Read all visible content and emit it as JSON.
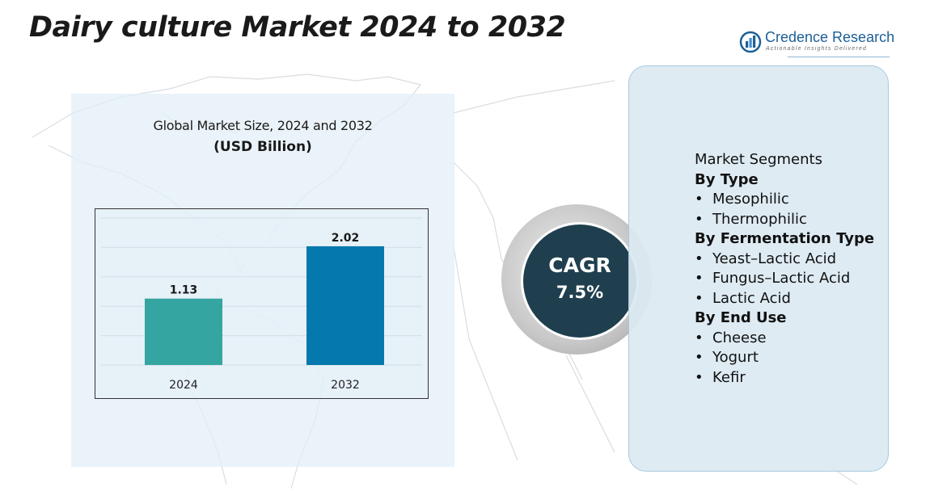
{
  "title": "Dairy culture Market 2024 to 2032",
  "logo": {
    "name": "Credence Research",
    "tagline": "Actionable Insights Delivered"
  },
  "colors": {
    "bar_2024": "#35a5a1",
    "bar_2032": "#0579ad",
    "cagr_bg": "#1f3f4f",
    "panel_bg": "#e2eef6"
  },
  "chart_data": {
    "type": "bar",
    "title": "Global Market Size, 2024 and 2032",
    "unit_label": "(USD Billion)",
    "categories": [
      "2024",
      "2032"
    ],
    "values": [
      1.13,
      2.02
    ],
    "value_labels": [
      "1.13",
      "2.02"
    ],
    "xlabel": "",
    "ylabel": "",
    "ylim": [
      0,
      2.5
    ],
    "grid": true
  },
  "cagr": {
    "label": "CAGR",
    "value": "7.5%"
  },
  "segments": {
    "heading": "Market Segments",
    "groups": [
      {
        "name": "By Type",
        "items": [
          "Mesophilic",
          "Thermophilic"
        ]
      },
      {
        "name": "By Fermentation Type",
        "items": [
          "Yeast–Lactic Acid",
          "Fungus–Lactic Acid",
          "Lactic Acid"
        ]
      },
      {
        "name": "By End Use",
        "items": [
          "Cheese",
          "Yogurt",
          "Kefir"
        ]
      }
    ]
  }
}
